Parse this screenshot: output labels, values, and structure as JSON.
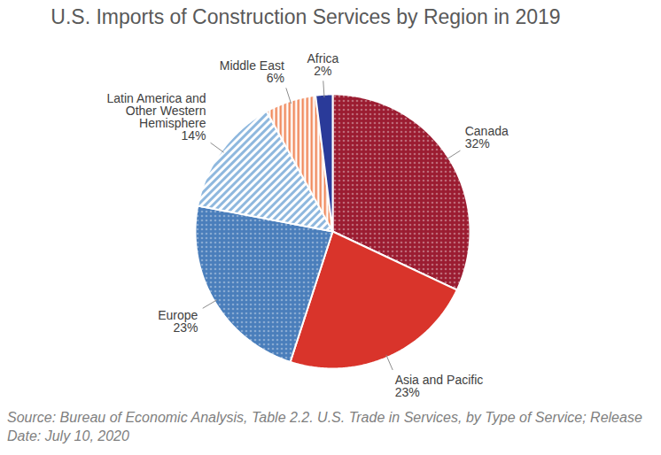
{
  "chart_data": {
    "type": "pie",
    "title": "U.S. Imports of Construction Services by Region in 2019",
    "caption": "Source: Bureau of Economic Analysis, Table 2.2. U.S. Trade in Services, by Type of Service; Release Date: July 10, 2020",
    "categories": [
      "Canada",
      "Asia and Pacific",
      "Europe",
      "Latin America and Other Western Hemisphere",
      "Middle East",
      "Africa"
    ],
    "values": [
      32,
      23,
      23,
      14,
      6,
      2
    ],
    "value_labels": [
      "32%",
      "23%",
      "23%",
      "14%",
      "6%",
      "2%"
    ],
    "colors": [
      "#9b1c31",
      "#d9342b",
      "#4a7ebb",
      "#8fb8de",
      "#f08a5d",
      "#2a3a99"
    ],
    "data_labels": true
  }
}
